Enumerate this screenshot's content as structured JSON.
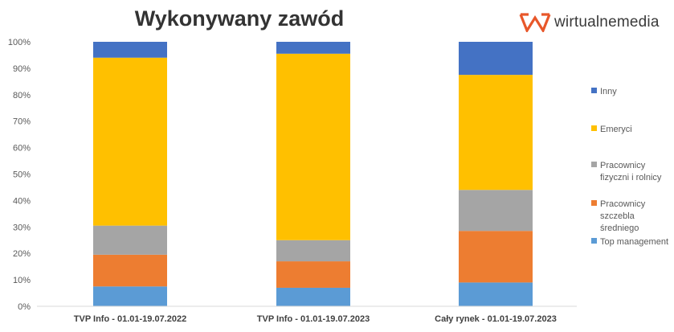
{
  "brand": {
    "name": "wirtualnemedia",
    "color": "#e8572a",
    "icon": "wm-logo-icon"
  },
  "chart_data": {
    "type": "bar",
    "stacked": true,
    "percent": true,
    "title": "Wykonywany zawód",
    "xlabel": "",
    "ylabel": "",
    "ylim": [
      0,
      100
    ],
    "yticks": [
      "0%",
      "10%",
      "20%",
      "30%",
      "40%",
      "50%",
      "60%",
      "70%",
      "80%",
      "90%",
      "100%"
    ],
    "grid": false,
    "legend_position": "right",
    "categories": [
      "TVP Info - 01.01-19.07.2022",
      "TVP Info - 01.01-19.07.2023",
      "Cały rynek - 01.01-19.07.2023"
    ],
    "series": [
      {
        "name": "Top management",
        "color": "#5b9bd5",
        "values": [
          7.5,
          7,
          9
        ]
      },
      {
        "name": "Pracownicy szczebla średniego",
        "legend_lines": [
          "Pracownicy",
          "szczebla",
          "średniego"
        ],
        "color": "#ed7d31",
        "values": [
          12,
          10,
          19.5
        ]
      },
      {
        "name": "Pracownicy fizyczni i rolnicy",
        "legend_lines": [
          "Pracownicy",
          "fizyczni i rolnicy"
        ],
        "color": "#a5a5a5",
        "values": [
          11,
          8,
          15.5
        ]
      },
      {
        "name": "Emeryci",
        "color": "#ffc000",
        "values": [
          63.5,
          70.5,
          43.5
        ]
      },
      {
        "name": "Inny",
        "color": "#4472c4",
        "values": [
          6,
          4.5,
          12.5
        ]
      }
    ]
  }
}
